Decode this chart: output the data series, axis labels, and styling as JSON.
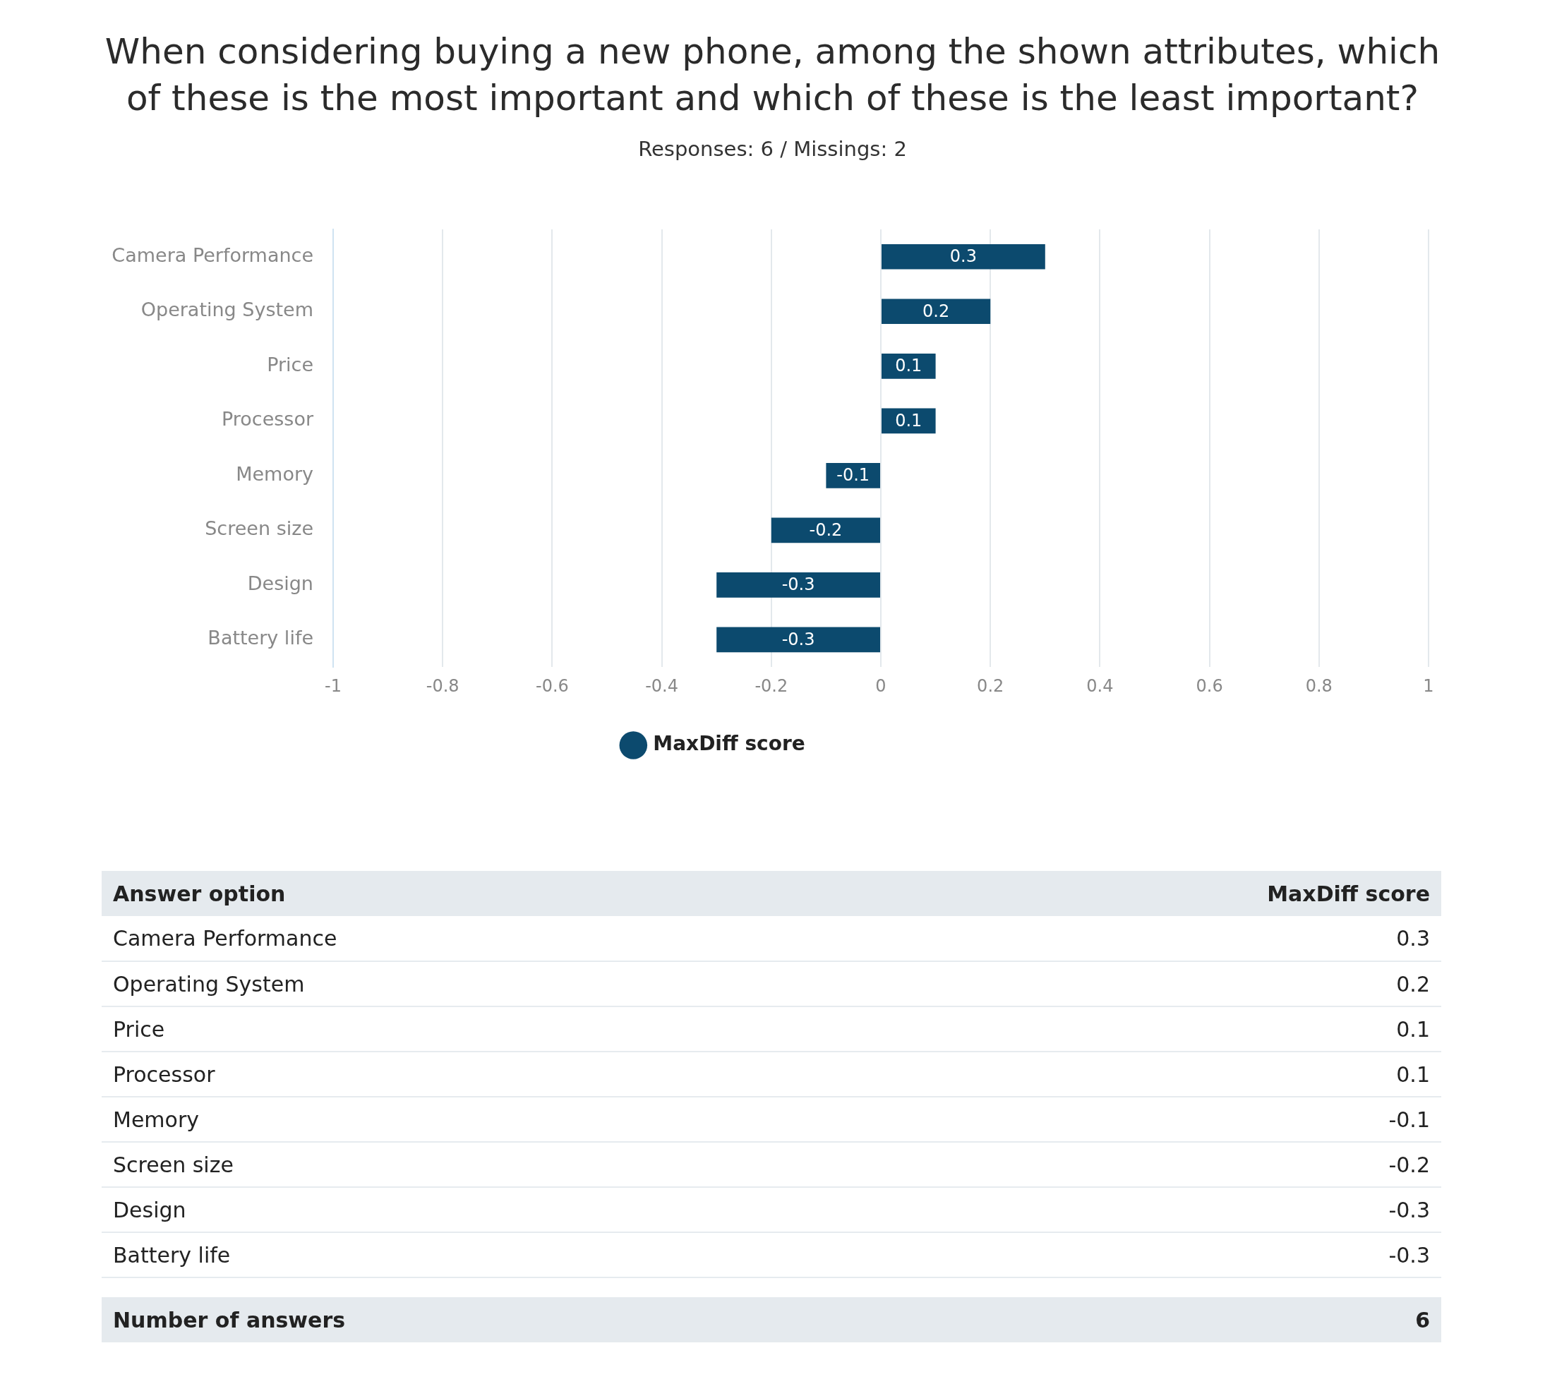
{
  "chart_data": [
    {
      "type": "bar",
      "orientation": "horizontal",
      "title": "When considering buying a new phone, among the shown attributes, which of these is the most important and which of these is the least important?",
      "subtitle": "Responses: 6 / Missings: 2",
      "categories": [
        "Camera Performance",
        "Operating System",
        "Price",
        "Processor",
        "Memory",
        "Screen size",
        "Design",
        "Battery life"
      ],
      "series": [
        {
          "name": "MaxDiff score",
          "color": "#0c4a6e",
          "values": [
            0.3,
            0.2,
            0.1,
            0.1,
            -0.1,
            -0.2,
            -0.3,
            -0.3
          ]
        }
      ],
      "xlim": [
        -1,
        1
      ],
      "xticks": [
        -1,
        -0.8,
        -0.6,
        -0.4,
        -0.2,
        0,
        0.2,
        0.4,
        0.6,
        0.8,
        1
      ],
      "grid": "x",
      "legend": "bottom",
      "data_labels": true
    },
    {
      "type": "other",
      "annotations": [
        "Answer option",
        "MaxDiff score",
        "Camera Performance",
        "0.3",
        "Operating System",
        "0.2",
        "Price",
        "0.1",
        "Processor",
        "0.1",
        "Memory",
        "-0.1",
        "Screen size",
        "-0.2",
        "Design",
        "-0.3",
        "Battery life",
        "-0.3",
        "Number of answers",
        "6"
      ]
    }
  ]
}
